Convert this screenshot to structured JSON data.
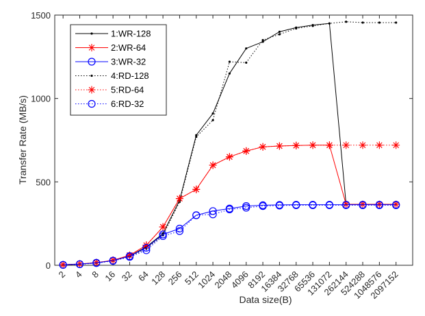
{
  "chart_data": {
    "type": "line",
    "title": "",
    "xlabel": "Data size(B)",
    "ylabel": "Transfer Rate (MB/s)",
    "categories": [
      "2",
      "4",
      "8",
      "16",
      "32",
      "64",
      "128",
      "256",
      "512",
      "1024",
      "2048",
      "4096",
      "8192",
      "16384",
      "32768",
      "65536",
      "131072",
      "262144",
      "524288",
      "1048576",
      "2097152"
    ],
    "ylim": [
      0,
      1500
    ],
    "yticks": [
      0,
      500,
      1000,
      1500
    ],
    "grid": false,
    "legend_position": "top-left",
    "series": [
      {
        "name": "1:WR-128",
        "color": "#000000",
        "line_style": "solid",
        "marker": "dot",
        "values": [
          3,
          7,
          15,
          28,
          55,
          110,
          190,
          390,
          780,
          910,
          1150,
          1300,
          1340,
          1400,
          1425,
          1440,
          1450,
          365,
          365,
          365,
          365
        ]
      },
      {
        "name": "2:WR-64",
        "color": "#ff0000",
        "line_style": "solid",
        "marker": "asterisk",
        "values": [
          3,
          8,
          16,
          30,
          60,
          120,
          230,
          400,
          455,
          600,
          650,
          685,
          710,
          715,
          718,
          720,
          720,
          365,
          365,
          365,
          365
        ]
      },
      {
        "name": "3:WR-32",
        "color": "#0000ff",
        "line_style": "solid",
        "marker": "circle",
        "values": [
          3,
          7,
          15,
          28,
          55,
          105,
          185,
          220,
          300,
          325,
          340,
          355,
          360,
          362,
          363,
          363,
          363,
          363,
          363,
          363,
          363
        ]
      },
      {
        "name": "4:RD-128",
        "color": "#000000",
        "line_style": "dotted",
        "marker": "dot",
        "values": null,
        "x": [
          17,
          18,
          19,
          20
        ],
        "y": [
          1460,
          1455,
          1455,
          1455
        ]
      },
      {
        "name": "5:RD-64",
        "color": "#ff0000",
        "line_style": "dotted",
        "marker": "asterisk",
        "values": null,
        "x": [
          17,
          18,
          19,
          20
        ],
        "y": [
          720,
          720,
          720,
          720
        ]
      },
      {
        "name": "6:RD-32",
        "color": "#0000ff",
        "line_style": "dotted",
        "marker": "circle",
        "values": [
          2,
          6,
          13,
          26,
          50,
          90,
          175,
          205,
          300,
          305,
          335,
          345,
          355,
          358,
          360,
          360,
          360,
          360,
          360,
          360,
          360
        ]
      }
    ],
    "rd128_full": [
      2,
      6,
      14,
      27,
      52,
      100,
      180,
      380,
      770,
      870,
      1220,
      1215,
      1350,
      1385,
      1420,
      1435,
      1450,
      1460,
      1455,
      1455,
      1455
    ],
    "rd64_full": [
      3,
      8,
      16,
      30,
      60,
      120,
      230,
      400,
      455,
      600,
      650,
      685,
      710,
      715,
      718,
      720,
      720,
      720,
      720,
      720,
      720
    ]
  }
}
